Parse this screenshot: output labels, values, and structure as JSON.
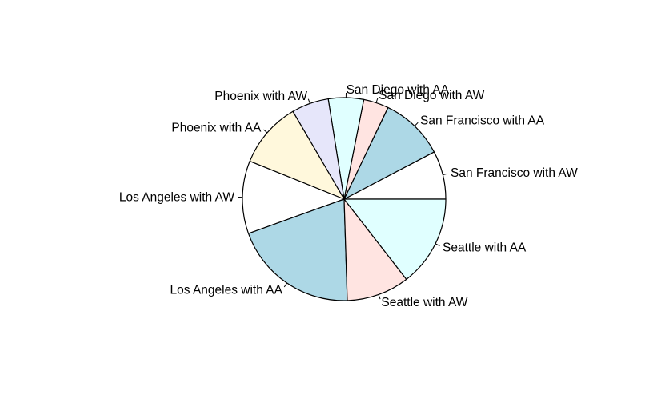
{
  "chart_data": {
    "type": "pie",
    "direction": "counterclockwise",
    "start": "3 o'clock",
    "border_color": "#000000",
    "slices": [
      {
        "label": "San Francisco with AW",
        "value": 7.7,
        "color": "#ffffff"
      },
      {
        "label": "San Francisco with AA",
        "value": 10.2,
        "color": "#add8e6"
      },
      {
        "label": "San Diego with AW",
        "value": 4.0,
        "color": "#ffe4e1"
      },
      {
        "label": "San Diego with AA",
        "value": 5.6,
        "color": "#e0ffff"
      },
      {
        "label": "Phoenix with AW",
        "value": 5.9,
        "color": "#e6e6fa"
      },
      {
        "label": "Phoenix with AA",
        "value": 10.5,
        "color": "#fff8dc"
      },
      {
        "label": "Los Angeles with AW",
        "value": 11.6,
        "color": "#ffffff"
      },
      {
        "label": "Los Angeles with AA",
        "value": 20.0,
        "color": "#add8e6"
      },
      {
        "label": "Seattle with AW",
        "value": 10.0,
        "color": "#ffe4e1"
      },
      {
        "label": "Seattle with AA",
        "value": 14.5,
        "color": "#e0ffff"
      }
    ]
  }
}
